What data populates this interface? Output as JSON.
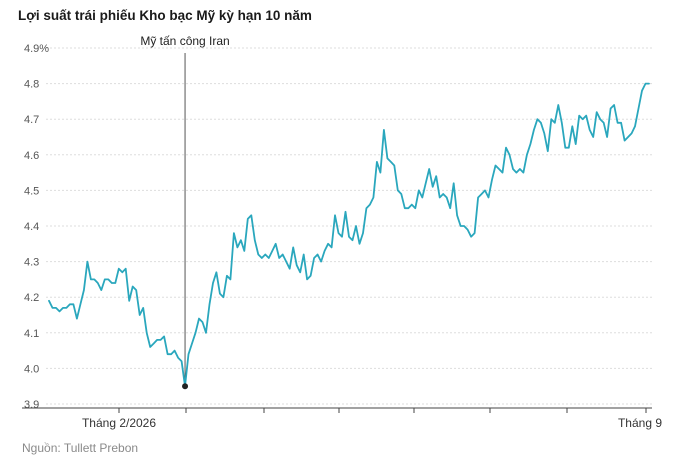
{
  "title": "Lợi suất trái phiếu Kho bạc Mỹ kỳ hạn 10 năm",
  "source": "Nguồn: Tullett Prebon",
  "chart_data": {
    "type": "line",
    "title": "Lợi suất trái phiếu Kho bạc Mỹ kỳ hạn 10 năm",
    "xlabel": "",
    "ylabel": "",
    "ylim": [
      3.9,
      4.9
    ],
    "y_ticks": [
      3.9,
      4.0,
      4.1,
      4.2,
      4.3,
      4.4,
      4.5,
      4.6,
      4.7,
      4.8,
      4.9
    ],
    "y_tick_labels": [
      "3.9",
      "4.0",
      "4.1",
      "4.2",
      "4.3",
      "4.4",
      "4.5",
      "4.6",
      "4.7",
      "4.8",
      "4.9%"
    ],
    "x_labels": [
      "Tháng 2/2026",
      "Tháng 9"
    ],
    "grid": true,
    "color": "#2aa7bd",
    "annotation": {
      "label": "Mỹ tấn công Iran",
      "index": 39,
      "value": 3.95
    },
    "series": [
      {
        "values": [
          4.19,
          4.17,
          4.17,
          4.16,
          4.17,
          4.17,
          4.18,
          4.18,
          4.14,
          4.18,
          4.22,
          4.3,
          4.25,
          4.25,
          4.24,
          4.22,
          4.25,
          4.25,
          4.24,
          4.24,
          4.28,
          4.27,
          4.28,
          4.19,
          4.23,
          4.22,
          4.15,
          4.17,
          4.1,
          4.06,
          4.07,
          4.08,
          4.08,
          4.09,
          4.04,
          4.04,
          4.05,
          4.03,
          4.02,
          3.95,
          4.04,
          4.07,
          4.1,
          4.14,
          4.13,
          4.1,
          4.18,
          4.24,
          4.27,
          4.21,
          4.2,
          4.26,
          4.25,
          4.38,
          4.34,
          4.36,
          4.33,
          4.42,
          4.43,
          4.36,
          4.32,
          4.31,
          4.32,
          4.31,
          4.33,
          4.35,
          4.31,
          4.32,
          4.3,
          4.28,
          4.34,
          4.29,
          4.27,
          4.32,
          4.25,
          4.26,
          4.31,
          4.32,
          4.3,
          4.33,
          4.35,
          4.34,
          4.43,
          4.38,
          4.37,
          4.44,
          4.37,
          4.36,
          4.4,
          4.35,
          4.38,
          4.45,
          4.46,
          4.48,
          4.58,
          4.55,
          4.67,
          4.59,
          4.58,
          4.57,
          4.5,
          4.49,
          4.45,
          4.45,
          4.46,
          4.45,
          4.5,
          4.48,
          4.52,
          4.56,
          4.51,
          4.54,
          4.48,
          4.49,
          4.48,
          4.45,
          4.52,
          4.43,
          4.4,
          4.4,
          4.39,
          4.37,
          4.38,
          4.48,
          4.49,
          4.5,
          4.48,
          4.53,
          4.57,
          4.56,
          4.55,
          4.62,
          4.6,
          4.56,
          4.55,
          4.56,
          4.55,
          4.6,
          4.63,
          4.67,
          4.7,
          4.69,
          4.66,
          4.61,
          4.7,
          4.69,
          4.74,
          4.69,
          4.62,
          4.62,
          4.68,
          4.63,
          4.71,
          4.7,
          4.71,
          4.67,
          4.65,
          4.72,
          4.7,
          4.69,
          4.65,
          4.73,
          4.74,
          4.69,
          4.69,
          4.64,
          4.65,
          4.66,
          4.68,
          4.73,
          4.78,
          4.8,
          4.8
        ]
      }
    ]
  }
}
